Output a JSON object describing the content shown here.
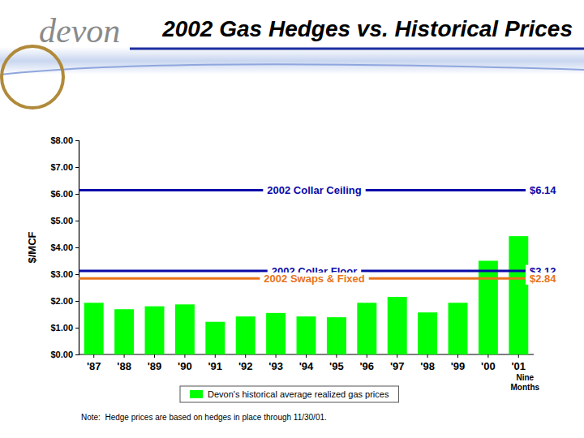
{
  "chart_data": {
    "type": "bar",
    "title": "2002 Gas Hedges vs. Historical Prices",
    "logo": "devon",
    "y_label": "$/MCF",
    "categories": [
      "'87",
      "'88",
      "'89",
      "'90",
      "'91",
      "'92",
      "'93",
      "'94",
      "'95",
      "'96",
      "'97",
      "'98",
      "'99",
      "'00",
      "'01"
    ],
    "series": [
      {
        "name": "Devon's historical average realized gas prices",
        "color": "#00ff00",
        "values": [
          1.93,
          1.69,
          1.8,
          1.87,
          1.22,
          1.42,
          1.55,
          1.42,
          1.39,
          1.93,
          2.15,
          1.57,
          1.93,
          3.5,
          4.42
        ]
      }
    ],
    "ylim": [
      0,
      8
    ],
    "yticks": [
      {
        "value": 0,
        "label": "$0.00"
      },
      {
        "value": 1,
        "label": "$1.00"
      },
      {
        "value": 2,
        "label": "$2.00"
      },
      {
        "value": 3,
        "label": "$3.00"
      },
      {
        "value": 4,
        "label": "$4.00"
      },
      {
        "value": 5,
        "label": "$5.00"
      },
      {
        "value": 6,
        "label": "$6.00"
      },
      {
        "value": 7,
        "label": "$7.00"
      },
      {
        "value": 8,
        "label": "$8.00"
      }
    ],
    "grid": false,
    "annotations": [
      {
        "text": "2002 Collar Ceiling",
        "value": 6.14,
        "value_label": "$6.14",
        "color": "#0a0aa8"
      },
      {
        "text": "2002 Collar Floor",
        "value": 3.12,
        "value_label": "$3.12",
        "color": "#0a0aa8"
      },
      {
        "text": "2002 Swaps & Fixed",
        "value": 2.84,
        "value_label": "$2.84",
        "color": "#e8741a"
      }
    ],
    "category_notes": [
      {
        "category": "'01",
        "text": "Nine Months"
      }
    ],
    "note": "Note:  Hedge prices are based on hedges in place through 11/30/01."
  }
}
